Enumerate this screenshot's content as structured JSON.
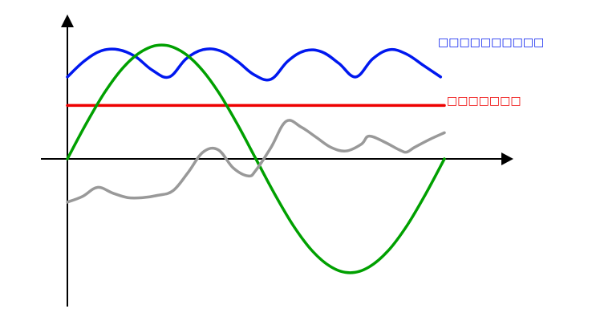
{
  "chart_data": {
    "type": "line",
    "title": "",
    "xlabel": "",
    "ylabel": "",
    "grid": false,
    "legend": "none",
    "ylim": [
      -1.1,
      1.1
    ],
    "xlim": [
      0,
      1
    ],
    "series": [
      {
        "name": "□□□□□□□□□□",
        "color": "#0018ef",
        "style": "rectified-sine-ac-ripple",
        "x": [
          0.0,
          0.045,
          0.09,
          0.135,
          0.18,
          0.225,
          0.27,
          0.315,
          0.36,
          0.405,
          0.45,
          0.495,
          0.54,
          0.585,
          0.63,
          0.675,
          0.72,
          0.765,
          0.81,
          0.855,
          0.9,
          0.945,
          0.99
        ],
        "values": [
          0.72,
          0.86,
          0.95,
          0.96,
          0.9,
          0.78,
          0.72,
          0.88,
          0.96,
          0.95,
          0.86,
          0.74,
          0.7,
          0.86,
          0.95,
          0.94,
          0.84,
          0.72,
          0.88,
          0.96,
          0.92,
          0.82,
          0.72
        ]
      },
      {
        "name": "□□□□□□□",
        "color": "#ee0000",
        "style": "constant-dc",
        "x": [
          0.0,
          1.0
        ],
        "values": [
          0.47,
          0.47
        ]
      },
      {
        "name": "",
        "color": "#00a000",
        "style": "sine",
        "x": [
          0.0,
          0.05,
          0.1,
          0.15,
          0.2,
          0.25,
          0.3,
          0.35,
          0.4,
          0.45,
          0.5,
          0.55,
          0.6,
          0.65,
          0.7,
          0.75,
          0.8,
          0.85,
          0.9,
          0.95,
          1.0
        ],
        "values": [
          0.0,
          0.31,
          0.59,
          0.81,
          0.95,
          1.0,
          0.95,
          0.81,
          0.59,
          0.31,
          0.0,
          -0.31,
          -0.59,
          -0.81,
          -0.95,
          -1.0,
          -0.95,
          -0.81,
          -0.59,
          -0.31,
          0.0
        ]
      },
      {
        "name": "",
        "color": "#999999",
        "style": "noisy",
        "x": [
          0.0,
          0.04,
          0.08,
          0.12,
          0.16,
          0.2,
          0.24,
          0.28,
          0.32,
          0.36,
          0.4,
          0.44,
          0.48,
          0.5,
          0.54,
          0.58,
          0.62,
          0.66,
          0.7,
          0.74,
          0.78,
          0.8,
          0.84,
          0.88,
          0.9,
          0.92,
          0.96,
          1.0
        ],
        "values": [
          -0.38,
          -0.33,
          -0.25,
          -0.3,
          -0.34,
          -0.34,
          -0.32,
          -0.28,
          -0.12,
          0.06,
          0.08,
          -0.08,
          -0.15,
          -0.1,
          0.1,
          0.33,
          0.28,
          0.19,
          0.1,
          0.07,
          0.13,
          0.2,
          0.15,
          0.08,
          0.06,
          0.1,
          0.17,
          0.23
        ]
      }
    ]
  },
  "axes": {
    "x_axis_color": "#000000",
    "y_axis_color": "#000000"
  }
}
